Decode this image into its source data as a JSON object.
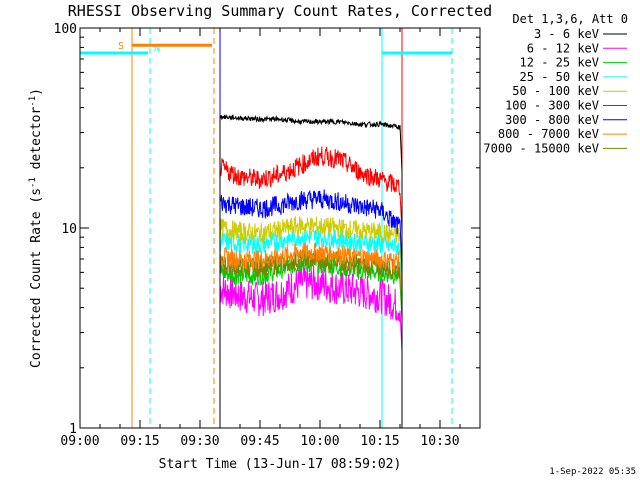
{
  "chart_data": {
    "type": "line",
    "title": "RHESSI Observing Summary Count Rates, Corrected",
    "xlabel": "Start Time (13-Jun-17 08:59:02)",
    "ylabel_main": "Corrected Count Rate (s",
    "ylabel_sup1": "-1",
    "ylabel_mid": " detector",
    "ylabel_sup2": "-1",
    "ylabel_end": ")",
    "yscale": "log",
    "ylim": [
      1,
      100
    ],
    "xlim_minutes": [
      0,
      100
    ],
    "x_ticks": [
      {
        "m": 0,
        "label": "09:00"
      },
      {
        "m": 15,
        "label": "09:15"
      },
      {
        "m": 30,
        "label": "09:30"
      },
      {
        "m": 45,
        "label": "09:45"
      },
      {
        "m": 60,
        "label": "10:00"
      },
      {
        "m": 75,
        "label": "10:15"
      },
      {
        "m": 90,
        "label": "10:30"
      }
    ],
    "y_ticks": [
      {
        "v": 1,
        "label": "1"
      },
      {
        "v": 10,
        "label": "10"
      },
      {
        "v": 100,
        "label": "100"
      }
    ],
    "legend_title": "Det 1,3,6, Att 0",
    "legend_position": "top-right",
    "data_span_minutes": [
      35,
      80.5
    ],
    "series": [
      {
        "name": "3 - 6 keV",
        "color": "#000000",
        "points": [
          [
            35,
            36
          ],
          [
            40,
            35.5
          ],
          [
            45,
            35
          ],
          [
            50,
            35
          ],
          [
            55,
            34
          ],
          [
            60,
            34
          ],
          [
            65,
            34
          ],
          [
            70,
            33
          ],
          [
            75,
            33
          ],
          [
            80,
            32
          ]
        ]
      },
      {
        "name": "6 - 12 keV",
        "color": "#ff00ff",
        "points": [
          [
            35,
            5
          ],
          [
            40,
            4.6
          ],
          [
            45,
            4.4
          ],
          [
            50,
            4.7
          ],
          [
            55,
            5.3
          ],
          [
            60,
            5.3
          ],
          [
            65,
            5
          ],
          [
            70,
            4.8
          ],
          [
            75,
            4.6
          ],
          [
            80,
            4
          ]
        ]
      },
      {
        "name": "12 - 25 keV",
        "color": "#00cc00",
        "points": [
          [
            35,
            6
          ],
          [
            40,
            5.8
          ],
          [
            45,
            5.8
          ],
          [
            50,
            6.2
          ],
          [
            55,
            6.7
          ],
          [
            60,
            6.6
          ],
          [
            65,
            6.4
          ],
          [
            70,
            6.1
          ],
          [
            75,
            6
          ],
          [
            80,
            5.8
          ]
        ]
      },
      {
        "name": "25 - 50 keV",
        "color": "#00ffff",
        "points": [
          [
            35,
            8.6
          ],
          [
            40,
            8.4
          ],
          [
            45,
            8.3
          ],
          [
            50,
            8.6
          ],
          [
            55,
            9.1
          ],
          [
            60,
            9
          ],
          [
            65,
            8.8
          ],
          [
            70,
            8.5
          ],
          [
            75,
            8.3
          ],
          [
            80,
            8
          ]
        ]
      },
      {
        "name": "50 - 100 keV",
        "color": "#cccc00",
        "points": [
          [
            35,
            10
          ],
          [
            40,
            9.6
          ],
          [
            45,
            9.4
          ],
          [
            50,
            9.8
          ],
          [
            55,
            10.3
          ],
          [
            60,
            10.2
          ],
          [
            65,
            10
          ],
          [
            70,
            9.7
          ],
          [
            75,
            9.5
          ],
          [
            80,
            9.2
          ]
        ]
      },
      {
        "name": "100 - 300 keV",
        "color": "#ff0000",
        "points": [
          [
            35,
            20
          ],
          [
            40,
            18
          ],
          [
            45,
            17.5
          ],
          [
            50,
            18.5
          ],
          [
            55,
            20.5
          ],
          [
            60,
            23
          ],
          [
            65,
            22
          ],
          [
            70,
            19
          ],
          [
            75,
            17.5
          ],
          [
            80,
            16
          ]
        ]
      },
      {
        "name": "300 - 800 keV",
        "color": "#0000ff",
        "points": [
          [
            35,
            13.5
          ],
          [
            40,
            12.8
          ],
          [
            45,
            12.5
          ],
          [
            50,
            13
          ],
          [
            55,
            13.8
          ],
          [
            60,
            14
          ],
          [
            65,
            13.5
          ],
          [
            70,
            12.8
          ],
          [
            75,
            12.3
          ],
          [
            80,
            10
          ]
        ]
      },
      {
        "name": "800 - 7000 keV",
        "color": "#ff8000",
        "points": [
          [
            35,
            7.2
          ],
          [
            40,
            7
          ],
          [
            45,
            7
          ],
          [
            50,
            7.2
          ],
          [
            55,
            7.6
          ],
          [
            60,
            7.6
          ],
          [
            65,
            7.4
          ],
          [
            70,
            7.2
          ],
          [
            75,
            7
          ],
          [
            80,
            6.8
          ]
        ]
      },
      {
        "name": "7000 - 15000 keV",
        "color": "#808000",
        "points": [
          [
            35,
            6.6
          ],
          [
            40,
            6.4
          ],
          [
            45,
            6.4
          ],
          [
            50,
            6.6
          ],
          [
            55,
            7
          ],
          [
            60,
            7
          ],
          [
            65,
            6.8
          ],
          [
            70,
            6.6
          ],
          [
            75,
            6.4
          ],
          [
            80,
            6.2
          ]
        ]
      }
    ],
    "annotations": {
      "night_bars": [
        {
          "start_m": 0,
          "end_m": 17,
          "y": 75,
          "color": "#00ffff",
          "label": "N"
        },
        {
          "start_m": 75.5,
          "end_m": 93,
          "y": 75,
          "color": "#00ffff",
          "label": ""
        }
      ],
      "saa_bars": [
        {
          "start_m": 13,
          "end_m": 33,
          "y": 82,
          "color": "#ff8000",
          "label": "S"
        }
      ],
      "solid_lines": [
        {
          "m": 0,
          "color": "#00ffff"
        },
        {
          "m": 13,
          "color": "#ff8000"
        },
        {
          "m": 35,
          "color": "#0000ff"
        },
        {
          "m": 75.5,
          "color": "#00ffff"
        },
        {
          "m": 80.5,
          "color": "#ff0000"
        }
      ],
      "dashed_lines": [
        {
          "m": 17.5,
          "color": "#00ffff"
        },
        {
          "m": 33.5,
          "color": "#ff8000"
        },
        {
          "m": 93,
          "color": "#00ffff"
        }
      ]
    }
  },
  "footer": {
    "date_stamp": "1-Sep-2022 05:35"
  }
}
